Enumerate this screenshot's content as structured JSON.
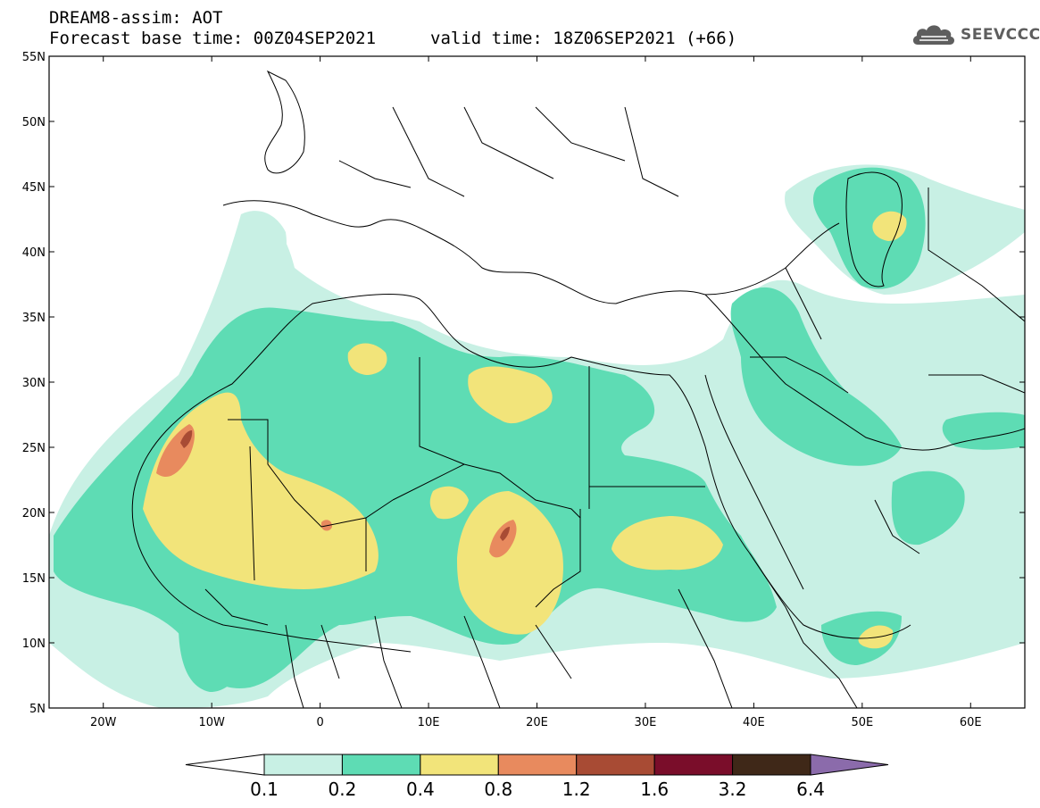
{
  "header": {
    "line1": "DREAM8-assim: AOT",
    "line2": "Forecast base time: 00Z04SEP2021",
    "line3": "valid time: 18Z06SEP2021 (+66)"
  },
  "logo": {
    "text": "SEEVCCC",
    "icon": "cloud-icon"
  },
  "map": {
    "lat_labels": [
      "55N",
      "50N",
      "45N",
      "40N",
      "35N",
      "30N",
      "25N",
      "20N",
      "15N",
      "10N",
      "5N"
    ],
    "lon_labels": [
      "20W",
      "10W",
      "0",
      "10E",
      "20E",
      "30E",
      "40E",
      "50E",
      "60E"
    ],
    "extent": {
      "lon_min": -25,
      "lon_max": 65,
      "lat_min": 5,
      "lat_max": 55
    }
  },
  "colorbar": {
    "labels": [
      "0.1",
      "0.2",
      "0.4",
      "0.8",
      "1.2",
      "1.6",
      "3.2",
      "6.4"
    ],
    "colors": [
      "#ffffff",
      "#c8f0e4",
      "#5edcb4",
      "#f2e47a",
      "#e88a5e",
      "#a84b34",
      "#7a0d2a",
      "#3f2818",
      "#8b6bab"
    ]
  }
}
